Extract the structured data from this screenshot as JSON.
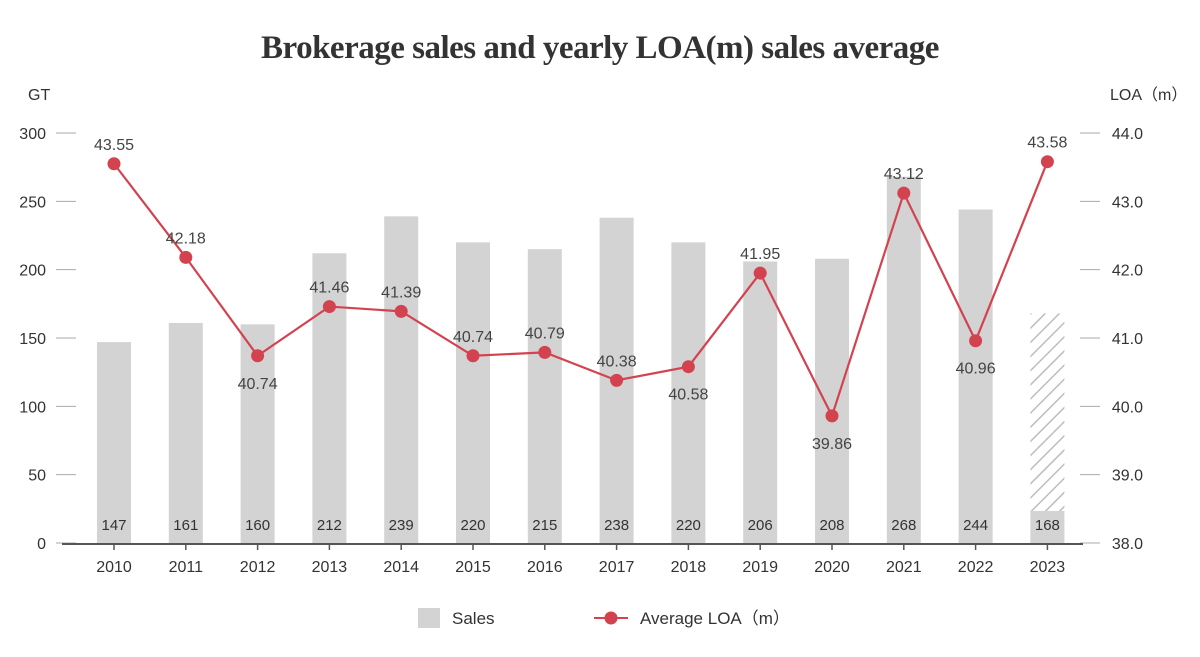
{
  "chart_data": {
    "type": "bar+line",
    "title": "Brokerage sales and yearly LOA(m) sales average",
    "categories": [
      "2010",
      "2011",
      "2012",
      "2013",
      "2014",
      "2015",
      "2016",
      "2017",
      "2018",
      "2019",
      "2020",
      "2021",
      "2022",
      "2023"
    ],
    "left_axis": {
      "label": "GT",
      "ylim": [
        0,
        300
      ],
      "ticks": [
        "0",
        "50",
        "100",
        "150",
        "200",
        "250",
        "300"
      ]
    },
    "right_axis": {
      "label": "LOA（m）",
      "ylim": [
        38.0,
        44.0
      ],
      "ticks": [
        "38.0",
        "39.0",
        "40.0",
        "41.0",
        "42.0",
        "43.0",
        "44.0"
      ]
    },
    "series": [
      {
        "name": "Sales",
        "type": "bar",
        "axis": "left",
        "values": [
          147,
          161,
          160,
          212,
          239,
          220,
          215,
          238,
          220,
          206,
          208,
          268,
          244,
          168
        ],
        "labels": [
          "147",
          "161",
          "160",
          "212",
          "239",
          "220",
          "215",
          "238",
          "220",
          "206",
          "208",
          "268",
          "244",
          "168"
        ],
        "color": "#d3d3d3",
        "hatched_last": true
      },
      {
        "name": "Average LOA（m）",
        "type": "line",
        "axis": "right",
        "values": [
          43.55,
          42.18,
          40.74,
          41.46,
          41.39,
          40.74,
          40.79,
          40.38,
          40.58,
          41.95,
          39.86,
          43.12,
          40.96,
          43.58
        ],
        "labels": [
          "43.55",
          "42.18",
          "40.74",
          "41.46",
          "41.39",
          "40.74",
          "40.79",
          "40.38",
          "40.58",
          "41.95",
          "39.86",
          "43.12",
          "40.96",
          "43.58"
        ],
        "label_pos": [
          "above",
          "above",
          "below",
          "above",
          "above",
          "above",
          "above",
          "above",
          "below",
          "above",
          "below",
          "above",
          "below",
          "above"
        ],
        "color": "#d2434f"
      }
    ],
    "legend": {
      "placement": "bottom",
      "items": [
        "Sales",
        "Average LOA（m）"
      ]
    },
    "grid": false
  }
}
